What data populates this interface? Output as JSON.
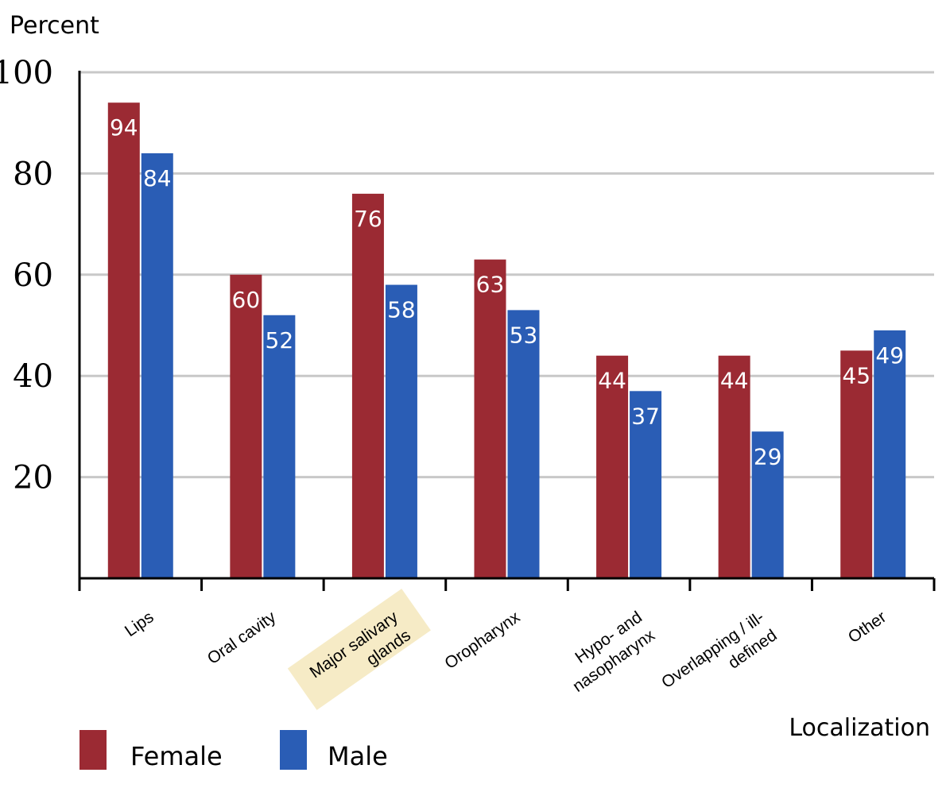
{
  "colors": {
    "female": "#9b2a33",
    "male": "#2a5db5",
    "grid": "#c8c8c8",
    "axis": "#000000",
    "highlight": "#f6ebc6"
  },
  "chart_data": {
    "type": "bar",
    "ylabel": "Percent",
    "xlabel": "Localization",
    "ylim": [
      0,
      100
    ],
    "yticks": [
      20,
      40,
      60,
      80,
      100
    ],
    "grid": true,
    "legend_position": "bottom-left",
    "categories": [
      [
        "Lips"
      ],
      [
        "Oral cavity"
      ],
      [
        "Major salivary",
        "glands"
      ],
      [
        "Oropharynx"
      ],
      [
        "Hypo- and",
        "nasopharynx"
      ],
      [
        "Overlapping / ill-",
        "defined"
      ],
      [
        "Other"
      ]
    ],
    "highlighted_category": 2,
    "series": [
      {
        "name": "Female",
        "values": [
          94,
          60,
          76,
          63,
          44,
          44,
          45
        ]
      },
      {
        "name": "Male",
        "values": [
          84,
          52,
          58,
          53,
          37,
          29,
          49
        ]
      }
    ]
  }
}
